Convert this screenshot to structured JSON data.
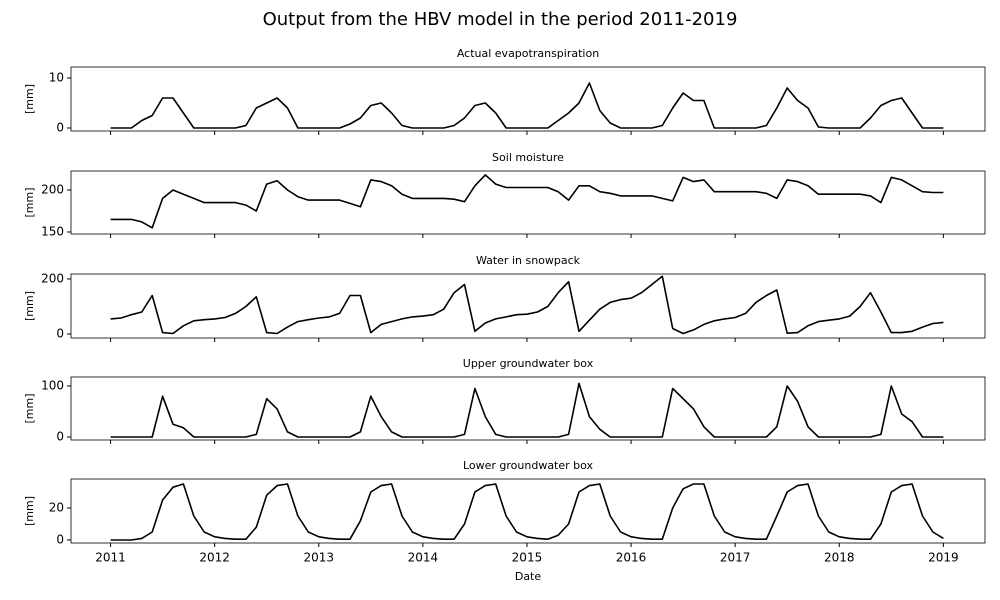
{
  "title": "Output from the HBV model in the period 2011-2019",
  "chart_data": [
    {
      "type": "line",
      "title": "Actual evapotranspiration",
      "ylabel": "[mm]",
      "color": "#000000",
      "x": [
        2011,
        2011.1,
        2011.2,
        2011.3,
        2011.4,
        2011.5,
        2011.6,
        2011.7,
        2011.8,
        2011.9,
        2012,
        2012.1,
        2012.2,
        2012.3,
        2012.4,
        2012.5,
        2012.6,
        2012.7,
        2012.8,
        2012.9,
        2013,
        2013.1,
        2013.2,
        2013.3,
        2013.4,
        2013.5,
        2013.6,
        2013.7,
        2013.8,
        2013.9,
        2014,
        2014.1,
        2014.2,
        2014.3,
        2014.4,
        2014.5,
        2014.6,
        2014.7,
        2014.8,
        2014.9,
        2015,
        2015.1,
        2015.2,
        2015.3,
        2015.4,
        2015.5,
        2015.6,
        2015.7,
        2015.8,
        2015.9,
        2016,
        2016.1,
        2016.2,
        2016.3,
        2016.4,
        2016.5,
        2016.6,
        2016.7,
        2016.8,
        2016.9,
        2017,
        2017.1,
        2017.2,
        2017.3,
        2017.4,
        2017.5,
        2017.6,
        2017.7,
        2017.8,
        2017.9,
        2018,
        2018.1,
        2018.2,
        2018.3,
        2018.4,
        2018.5,
        2018.6,
        2018.7,
        2018.8,
        2018.9,
        2019
      ],
      "values": [
        0,
        0,
        0,
        1.5,
        2.5,
        6,
        6,
        3,
        0,
        0,
        0,
        0,
        0,
        0.5,
        4,
        5,
        6,
        4,
        0,
        0,
        0,
        0,
        0,
        0.8,
        2,
        4.5,
        5,
        3,
        0.5,
        0,
        0,
        0,
        0,
        0.5,
        2,
        4.5,
        5,
        3,
        0,
        0,
        0,
        0,
        0,
        1.5,
        3,
        5,
        9,
        3.5,
        1,
        0,
        0,
        0,
        0,
        0.5,
        4,
        7,
        5.5,
        5.5,
        0,
        0,
        0,
        0,
        0,
        0.5,
        4,
        8,
        5.5,
        4,
        0.2,
        0,
        0,
        0,
        0,
        2,
        4.5,
        5.5,
        6,
        3,
        0,
        0,
        0
      ],
      "xlim": [
        2010.62,
        2019.4
      ],
      "xticks": [
        2011,
        2012,
        2013,
        2014,
        2015,
        2016,
        2017,
        2018,
        2019
      ],
      "ylim": [
        -0.6,
        12.2
      ],
      "yticks": [
        0,
        10
      ]
    },
    {
      "type": "line",
      "title": "Soil moisture",
      "ylabel": "[mm]",
      "color": "#000000",
      "x": [
        2011,
        2011.1,
        2011.2,
        2011.3,
        2011.4,
        2011.5,
        2011.6,
        2011.7,
        2011.8,
        2011.9,
        2012,
        2012.1,
        2012.2,
        2012.3,
        2012.4,
        2012.5,
        2012.6,
        2012.7,
        2012.8,
        2012.9,
        2013,
        2013.1,
        2013.2,
        2013.3,
        2013.4,
        2013.5,
        2013.6,
        2013.7,
        2013.8,
        2013.9,
        2014,
        2014.1,
        2014.2,
        2014.3,
        2014.4,
        2014.5,
        2014.6,
        2014.7,
        2014.8,
        2014.9,
        2015,
        2015.1,
        2015.2,
        2015.3,
        2015.4,
        2015.5,
        2015.6,
        2015.7,
        2015.8,
        2015.9,
        2016,
        2016.1,
        2016.2,
        2016.3,
        2016.4,
        2016.5,
        2016.6,
        2016.7,
        2016.8,
        2016.9,
        2017,
        2017.1,
        2017.2,
        2017.3,
        2017.4,
        2017.5,
        2017.6,
        2017.7,
        2017.8,
        2017.9,
        2018,
        2018.1,
        2018.2,
        2018.3,
        2018.4,
        2018.5,
        2018.6,
        2018.7,
        2018.8,
        2018.9,
        2019
      ],
      "values": [
        165,
        165,
        165,
        162,
        155,
        190,
        200,
        195,
        190,
        185,
        185,
        185,
        185,
        182,
        175,
        207,
        211,
        200,
        192,
        188,
        188,
        188,
        188,
        184,
        180,
        212,
        210,
        205,
        195,
        190,
        190,
        190,
        190,
        189,
        186,
        205,
        218,
        207,
        203,
        203,
        203,
        203,
        203,
        198,
        188,
        205,
        205,
        198,
        196,
        193,
        193,
        193,
        193,
        190,
        187,
        215,
        210,
        212,
        198,
        198,
        198,
        198,
        198,
        196,
        190,
        212,
        210,
        205,
        195,
        195,
        195,
        195,
        195,
        193,
        185,
        215,
        212,
        205,
        198,
        197,
        197
      ],
      "xlim": [
        2010.62,
        2019.4
      ],
      "xticks": [
        2011,
        2012,
        2013,
        2014,
        2015,
        2016,
        2017,
        2018,
        2019
      ],
      "ylim": [
        147.6,
        222.6
      ],
      "yticks": [
        150,
        200
      ]
    },
    {
      "type": "line",
      "title": "Water in snowpack",
      "ylabel": "[mm]",
      "color": "#000000",
      "x": [
        2011,
        2011.1,
        2011.2,
        2011.3,
        2011.4,
        2011.5,
        2011.6,
        2011.7,
        2011.8,
        2011.9,
        2012,
        2012.1,
        2012.2,
        2012.3,
        2012.4,
        2012.5,
        2012.6,
        2012.7,
        2012.8,
        2012.9,
        2013,
        2013.1,
        2013.2,
        2013.3,
        2013.4,
        2013.5,
        2013.6,
        2013.7,
        2013.8,
        2013.9,
        2014,
        2014.1,
        2014.2,
        2014.3,
        2014.4,
        2014.5,
        2014.6,
        2014.7,
        2014.8,
        2014.9,
        2015,
        2015.1,
        2015.2,
        2015.3,
        2015.4,
        2015.5,
        2015.6,
        2015.7,
        2015.8,
        2015.9,
        2016,
        2016.1,
        2016.2,
        2016.3,
        2016.4,
        2016.5,
        2016.6,
        2016.7,
        2016.8,
        2016.9,
        2017,
        2017.1,
        2017.2,
        2017.3,
        2017.4,
        2017.5,
        2017.6,
        2017.7,
        2017.8,
        2017.9,
        2018,
        2018.1,
        2018.2,
        2018.3,
        2018.4,
        2018.5,
        2018.6,
        2018.7,
        2018.8,
        2018.9,
        2019
      ],
      "values": [
        55,
        58,
        70,
        80,
        140,
        5,
        2,
        30,
        48,
        52,
        55,
        60,
        75,
        100,
        135,
        5,
        2,
        25,
        45,
        52,
        58,
        62,
        75,
        140,
        140,
        5,
        35,
        45,
        55,
        62,
        65,
        70,
        90,
        150,
        180,
        10,
        40,
        55,
        62,
        70,
        72,
        80,
        100,
        150,
        190,
        10,
        50,
        90,
        115,
        125,
        130,
        150,
        180,
        210,
        20,
        2,
        15,
        35,
        48,
        55,
        60,
        75,
        115,
        140,
        160,
        3,
        5,
        30,
        45,
        50,
        55,
        65,
        100,
        150,
        80,
        5,
        5,
        10,
        25,
        38,
        42
      ],
      "xlim": [
        2010.62,
        2019.4
      ],
      "xticks": [
        2011,
        2012,
        2013,
        2014,
        2015,
        2016,
        2017,
        2018,
        2019
      ],
      "ylim": [
        -14.5,
        218
      ],
      "yticks": [
        0,
        200
      ]
    },
    {
      "type": "line",
      "title": "Upper groundwater box",
      "ylabel": "[mm]",
      "color": "#000000",
      "x": [
        2011,
        2011.1,
        2011.2,
        2011.3,
        2011.4,
        2011.5,
        2011.6,
        2011.7,
        2011.8,
        2011.9,
        2012,
        2012.1,
        2012.2,
        2012.3,
        2012.4,
        2012.5,
        2012.6,
        2012.7,
        2012.8,
        2012.9,
        2013,
        2013.1,
        2013.2,
        2013.3,
        2013.4,
        2013.5,
        2013.6,
        2013.7,
        2013.8,
        2013.9,
        2014,
        2014.1,
        2014.2,
        2014.3,
        2014.4,
        2014.5,
        2014.6,
        2014.7,
        2014.8,
        2014.9,
        2015,
        2015.1,
        2015.2,
        2015.3,
        2015.4,
        2015.5,
        2015.6,
        2015.7,
        2015.8,
        2015.9,
        2016,
        2016.1,
        2016.2,
        2016.3,
        2016.4,
        2016.5,
        2016.6,
        2016.7,
        2016.8,
        2016.9,
        2017,
        2017.1,
        2017.2,
        2017.3,
        2017.4,
        2017.5,
        2017.6,
        2017.7,
        2017.8,
        2017.9,
        2018,
        2018.1,
        2018.2,
        2018.3,
        2018.4,
        2018.5,
        2018.6,
        2018.7,
        2018.8,
        2018.9,
        2019
      ],
      "values": [
        0,
        0,
        0,
        0,
        0,
        80,
        25,
        18,
        0,
        0,
        0,
        0,
        0,
        0,
        5,
        75,
        55,
        10,
        0,
        0,
        0,
        0,
        0,
        0,
        10,
        80,
        40,
        10,
        0,
        0,
        0,
        0,
        0,
        0,
        5,
        95,
        40,
        5,
        0,
        0,
        0,
        0,
        0,
        0,
        5,
        105,
        40,
        15,
        0,
        0,
        0,
        0,
        0,
        0,
        95,
        75,
        55,
        20,
        0,
        0,
        0,
        0,
        0,
        0,
        20,
        100,
        70,
        20,
        0,
        0,
        0,
        0,
        0,
        0,
        5,
        100,
        45,
        30,
        0,
        0,
        0
      ],
      "xlim": [
        2010.62,
        2019.4
      ],
      "xticks": [
        2011,
        2012,
        2013,
        2014,
        2015,
        2016,
        2017,
        2018,
        2019
      ],
      "ylim": [
        -5.9,
        117.6
      ],
      "yticks": [
        0,
        100
      ]
    },
    {
      "type": "line",
      "title": "Lower groundwater box",
      "ylabel": "[mm]",
      "xlabel": "Date",
      "color": "#000000",
      "x": [
        2011,
        2011.1,
        2011.2,
        2011.3,
        2011.4,
        2011.5,
        2011.6,
        2011.7,
        2011.8,
        2011.9,
        2012,
        2012.1,
        2012.2,
        2012.3,
        2012.4,
        2012.5,
        2012.6,
        2012.7,
        2012.8,
        2012.9,
        2013,
        2013.1,
        2013.2,
        2013.3,
        2013.4,
        2013.5,
        2013.6,
        2013.7,
        2013.8,
        2013.9,
        2014,
        2014.1,
        2014.2,
        2014.3,
        2014.4,
        2014.5,
        2014.6,
        2014.7,
        2014.8,
        2014.9,
        2015,
        2015.1,
        2015.2,
        2015.3,
        2015.4,
        2015.5,
        2015.6,
        2015.7,
        2015.8,
        2015.9,
        2016,
        2016.1,
        2016.2,
        2016.3,
        2016.4,
        2016.5,
        2016.6,
        2016.7,
        2016.8,
        2016.9,
        2017,
        2017.1,
        2017.2,
        2017.3,
        2017.4,
        2017.5,
        2017.6,
        2017.7,
        2017.8,
        2017.9,
        2018,
        2018.1,
        2018.2,
        2018.3,
        2018.4,
        2018.5,
        2018.6,
        2018.7,
        2018.8,
        2018.9,
        2019
      ],
      "values": [
        0,
        0,
        0,
        1,
        5,
        25,
        33,
        35,
        15,
        5,
        2,
        1,
        0.5,
        0.5,
        8,
        28,
        34,
        35,
        15,
        5,
        2,
        1,
        0.5,
        0.5,
        12,
        30,
        34,
        35,
        15,
        5,
        2,
        1,
        0.5,
        0.5,
        10,
        30,
        34,
        35,
        15,
        5,
        2,
        1,
        0.5,
        3,
        10,
        30,
        34,
        35,
        15,
        5,
        2,
        1,
        0.5,
        0.5,
        20,
        32,
        35,
        35,
        15,
        5,
        2,
        1,
        0.5,
        0.5,
        15,
        30,
        34,
        35,
        15,
        5,
        2,
        1,
        0.5,
        0.5,
        10,
        30,
        34,
        35,
        15,
        5,
        1
      ],
      "xlim": [
        2010.62,
        2019.4
      ],
      "xticks": [
        2011,
        2012,
        2013,
        2014,
        2015,
        2016,
        2017,
        2018,
        2019
      ],
      "ylim": [
        -1.9,
        38.1
      ],
      "yticks": [
        0,
        20
      ]
    }
  ]
}
